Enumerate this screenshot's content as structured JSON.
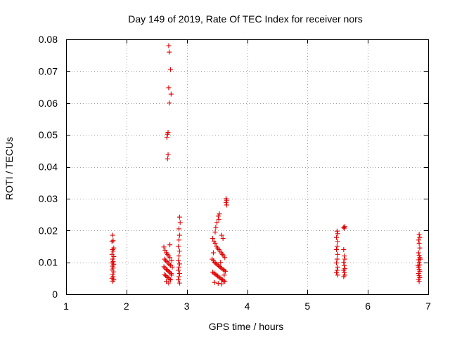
{
  "chart_data": {
    "type": "scatter",
    "title": "Day 149 of 2019, Rate Of TEC Index for receiver nors",
    "xlabel": "GPS time / hours",
    "ylabel": "ROTI / TECUs",
    "xlim": [
      1,
      7
    ],
    "ylim": [
      0,
      0.08
    ],
    "xticks": [
      "1",
      "2",
      "3",
      "4",
      "5",
      "6",
      "7"
    ],
    "yticks": [
      "0",
      "0.01",
      "0.02",
      "0.03",
      "0.04",
      "0.05",
      "0.06",
      "0.07",
      "0.08"
    ],
    "grid": true,
    "marker": "+",
    "color": "#e00000",
    "series": [
      {
        "name": "ROTI",
        "points": [
          [
            1.77,
            0.0185
          ],
          [
            1.78,
            0.0168
          ],
          [
            1.76,
            0.0165
          ],
          [
            1.79,
            0.0145
          ],
          [
            1.77,
            0.014
          ],
          [
            1.78,
            0.0135
          ],
          [
            1.76,
            0.0125
          ],
          [
            1.79,
            0.0118
          ],
          [
            1.77,
            0.011
          ],
          [
            1.78,
            0.0102
          ],
          [
            1.76,
            0.0098
          ],
          [
            1.79,
            0.0094
          ],
          [
            1.77,
            0.0088
          ],
          [
            1.78,
            0.0082
          ],
          [
            1.76,
            0.0076
          ],
          [
            1.79,
            0.007
          ],
          [
            1.77,
            0.0062
          ],
          [
            1.78,
            0.0055
          ],
          [
            1.76,
            0.005
          ],
          [
            1.79,
            0.0045
          ],
          [
            1.77,
            0.004
          ],
          [
            2.7,
            0.078
          ],
          [
            2.71,
            0.076
          ],
          [
            2.73,
            0.0705
          ],
          [
            2.7,
            0.0648
          ],
          [
            2.74,
            0.0628
          ],
          [
            2.71,
            0.06
          ],
          [
            2.69,
            0.0508
          ],
          [
            2.68,
            0.0502
          ],
          [
            2.67,
            0.0492
          ],
          [
            2.69,
            0.0438
          ],
          [
            2.68,
            0.0425
          ],
          [
            2.62,
            0.0148
          ],
          [
            2.64,
            0.0138
          ],
          [
            2.66,
            0.013
          ],
          [
            2.68,
            0.0125
          ],
          [
            2.7,
            0.012
          ],
          [
            2.72,
            0.0115
          ],
          [
            2.63,
            0.011
          ],
          [
            2.65,
            0.0106
          ],
          [
            2.67,
            0.0102
          ],
          [
            2.69,
            0.0098
          ],
          [
            2.71,
            0.0094
          ],
          [
            2.73,
            0.009
          ],
          [
            2.62,
            0.0086
          ],
          [
            2.64,
            0.0082
          ],
          [
            2.66,
            0.0078
          ],
          [
            2.68,
            0.0075
          ],
          [
            2.7,
            0.0072
          ],
          [
            2.72,
            0.0068
          ],
          [
            2.74,
            0.0065
          ],
          [
            2.63,
            0.0062
          ],
          [
            2.65,
            0.0058
          ],
          [
            2.67,
            0.0055
          ],
          [
            2.69,
            0.0052
          ],
          [
            2.71,
            0.0048
          ],
          [
            2.73,
            0.0045
          ],
          [
            2.66,
            0.004
          ],
          [
            2.7,
            0.0035
          ],
          [
            2.72,
            0.0155
          ],
          [
            2.75,
            0.0105
          ],
          [
            2.76,
            0.0085
          ],
          [
            2.75,
            0.006
          ],
          [
            2.88,
            0.0242
          ],
          [
            2.89,
            0.0225
          ],
          [
            2.87,
            0.0205
          ],
          [
            2.88,
            0.0185
          ],
          [
            2.87,
            0.017
          ],
          [
            2.86,
            0.015
          ],
          [
            2.88,
            0.0135
          ],
          [
            2.87,
            0.012
          ],
          [
            2.86,
            0.0105
          ],
          [
            2.88,
            0.0095
          ],
          [
            2.87,
            0.0085
          ],
          [
            2.86,
            0.0075
          ],
          [
            2.88,
            0.0065
          ],
          [
            2.87,
            0.0055
          ],
          [
            2.86,
            0.0045
          ],
          [
            2.88,
            0.0035
          ],
          [
            3.43,
            0.0175
          ],
          [
            3.45,
            0.0165
          ],
          [
            3.47,
            0.016
          ],
          [
            3.49,
            0.015
          ],
          [
            3.51,
            0.0145
          ],
          [
            3.53,
            0.014
          ],
          [
            3.55,
            0.0135
          ],
          [
            3.57,
            0.013
          ],
          [
            3.59,
            0.0125
          ],
          [
            3.61,
            0.012
          ],
          [
            3.63,
            0.0115
          ],
          [
            3.42,
            0.011
          ],
          [
            3.44,
            0.0105
          ],
          [
            3.46,
            0.01
          ],
          [
            3.48,
            0.0097
          ],
          [
            3.5,
            0.0094
          ],
          [
            3.52,
            0.009
          ],
          [
            3.54,
            0.0087
          ],
          [
            3.56,
            0.0084
          ],
          [
            3.58,
            0.0081
          ],
          [
            3.6,
            0.0078
          ],
          [
            3.62,
            0.0075
          ],
          [
            3.64,
            0.0072
          ],
          [
            3.43,
            0.0069
          ],
          [
            3.45,
            0.0066
          ],
          [
            3.47,
            0.0063
          ],
          [
            3.49,
            0.006
          ],
          [
            3.51,
            0.0057
          ],
          [
            3.53,
            0.0054
          ],
          [
            3.55,
            0.0051
          ],
          [
            3.57,
            0.0048
          ],
          [
            3.59,
            0.0045
          ],
          [
            3.61,
            0.0042
          ],
          [
            3.63,
            0.004
          ],
          [
            3.46,
            0.0037
          ],
          [
            3.52,
            0.0034
          ],
          [
            3.58,
            0.0032
          ],
          [
            3.44,
            0.013
          ],
          [
            3.56,
            0.01
          ],
          [
            3.62,
            0.006
          ],
          [
            3.48,
            0.021
          ],
          [
            3.5,
            0.0225
          ],
          [
            3.52,
            0.0245
          ],
          [
            3.54,
            0.0252
          ],
          [
            3.53,
            0.0235
          ],
          [
            3.47,
            0.0195
          ],
          [
            3.58,
            0.0185
          ],
          [
            3.6,
            0.0175
          ],
          [
            3.65,
            0.03
          ],
          [
            3.66,
            0.0295
          ],
          [
            3.65,
            0.0288
          ],
          [
            3.66,
            0.028
          ],
          [
            5.49,
            0.0198
          ],
          [
            5.5,
            0.019
          ],
          [
            5.48,
            0.0178
          ],
          [
            5.5,
            0.0165
          ],
          [
            5.49,
            0.015
          ],
          [
            5.48,
            0.014
          ],
          [
            5.5,
            0.0125
          ],
          [
            5.49,
            0.011
          ],
          [
            5.48,
            0.0098
          ],
          [
            5.5,
            0.0085
          ],
          [
            5.49,
            0.0075
          ],
          [
            5.48,
            0.0068
          ],
          [
            5.5,
            0.006
          ],
          [
            5.6,
            0.021
          ],
          [
            5.61,
            0.0207
          ],
          [
            5.62,
            0.0212
          ],
          [
            5.6,
            0.014
          ],
          [
            5.61,
            0.012
          ],
          [
            5.62,
            0.011
          ],
          [
            5.6,
            0.01
          ],
          [
            5.61,
            0.009
          ],
          [
            5.62,
            0.008
          ],
          [
            5.6,
            0.0075
          ],
          [
            5.61,
            0.0068
          ],
          [
            5.62,
            0.006
          ],
          [
            5.6,
            0.0055
          ],
          [
            6.85,
            0.0188
          ],
          [
            6.86,
            0.0178
          ],
          [
            6.84,
            0.017
          ],
          [
            6.85,
            0.016
          ],
          [
            6.86,
            0.0145
          ],
          [
            6.84,
            0.013
          ],
          [
            6.85,
            0.0122
          ],
          [
            6.86,
            0.0115
          ],
          [
            6.84,
            0.0108
          ],
          [
            6.85,
            0.01
          ],
          [
            6.86,
            0.0092
          ],
          [
            6.84,
            0.0085
          ],
          [
            6.85,
            0.0078
          ],
          [
            6.86,
            0.0072
          ],
          [
            6.84,
            0.0065
          ],
          [
            6.85,
            0.0058
          ],
          [
            6.86,
            0.0052
          ],
          [
            6.84,
            0.0046
          ],
          [
            6.85,
            0.004
          ],
          [
            6.87,
            0.011
          ],
          [
            6.83,
            0.009
          ]
        ]
      }
    ]
  }
}
